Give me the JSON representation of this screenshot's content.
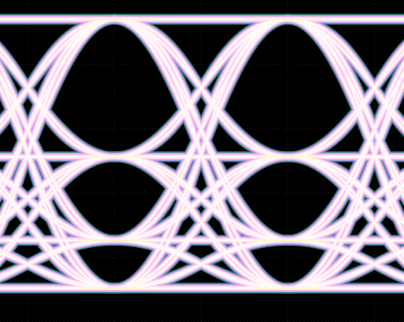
{
  "chart_data": {
    "type": "eye_diagram",
    "levels": [
      10.5,
      25.4,
      51.3,
      94
    ],
    "crossings": [
      0,
      1,
      2
    ],
    "xlim": [
      -0.16,
      2.17
    ],
    "ylim": [
      0,
      100
    ],
    "xticks": [
      0,
      0.5,
      1,
      1.5,
      2
    ],
    "yticks": [
      0,
      20,
      40,
      60,
      80,
      100
    ],
    "grid": true,
    "tick_labels": false
  }
}
